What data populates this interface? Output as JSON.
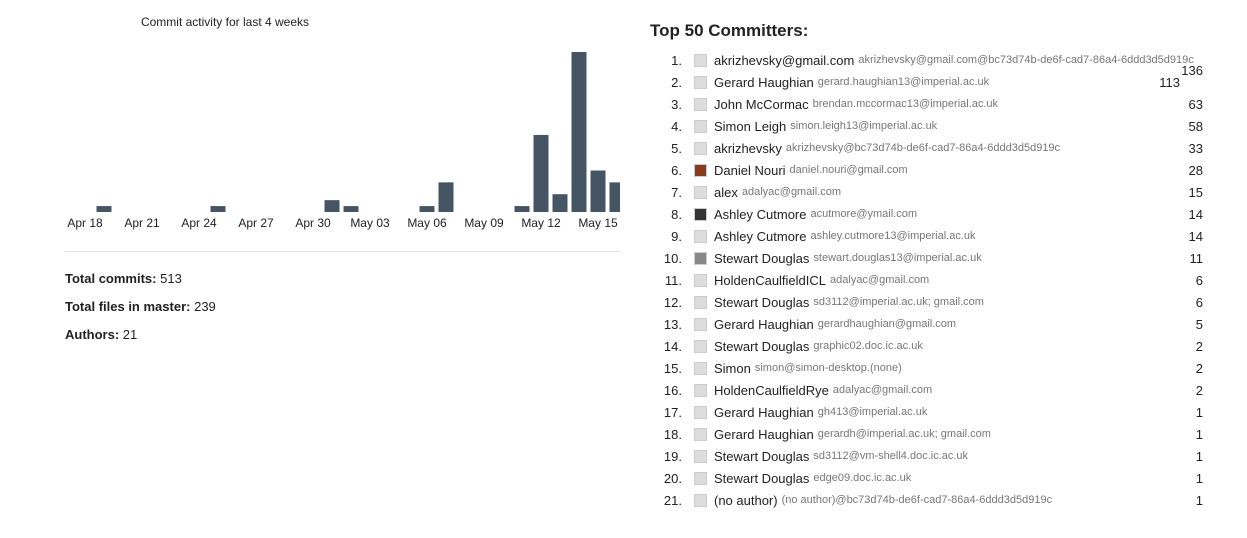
{
  "chart_data": {
    "type": "bar",
    "title": "Commit activity for last 4 weeks",
    "categories": [
      "Apr 18",
      null,
      null,
      "Apr 21",
      null,
      null,
      "Apr 24",
      null,
      null,
      "Apr 27",
      null,
      null,
      "Apr 30",
      null,
      null,
      "May 03",
      null,
      null,
      "May 06",
      null,
      null,
      "May 09",
      null,
      null,
      "May 12",
      null,
      null,
      "May 15",
      null
    ],
    "values": [
      0,
      1,
      0,
      0,
      0,
      0,
      0,
      1,
      0,
      0,
      0,
      0,
      0,
      2,
      1,
      0,
      0,
      0,
      1,
      5,
      0,
      0,
      0,
      1,
      13,
      3,
      27,
      7,
      5
    ],
    "color": "#455564",
    "ylim": [
      0,
      27
    ]
  },
  "stats": [
    {
      "label": "Total commits:",
      "value": "513"
    },
    {
      "label": "Total files in master:",
      "value": "239"
    },
    {
      "label": "Authors:",
      "value": "21"
    }
  ],
  "committers": {
    "title": "Top 50 Committers:",
    "rows": [
      {
        "rank": "1.",
        "name": "akrizhevsky@gmail.com",
        "email": "akrizhevsky@gmail.com@bc73d74b-de6f-cad7-86a4-6ddd3d5d919c",
        "count": "136"
      },
      {
        "rank": "2.",
        "name": "Gerard Haughian",
        "email": "gerard.haughian13@imperial.ac.uk",
        "count": "113"
      },
      {
        "rank": "3.",
        "name": "John McCormac",
        "email": "brendan.mccormac13@imperial.ac.uk",
        "count": "63"
      },
      {
        "rank": "4.",
        "name": "Simon Leigh",
        "email": "simon.leigh13@imperial.ac.uk",
        "count": "58"
      },
      {
        "rank": "5.",
        "name": "akrizhevsky",
        "email": "akrizhevsky@bc73d74b-de6f-cad7-86a4-6ddd3d5d919c",
        "count": "33"
      },
      {
        "rank": "6.",
        "name": "Daniel Nouri",
        "email": "daniel.nouri@gmail.com",
        "count": "28"
      },
      {
        "rank": "7.",
        "name": "alex",
        "email": "adalyac@gmail.com",
        "count": "15"
      },
      {
        "rank": "8.",
        "name": "Ashley Cutmore",
        "email": "acutmore@ymail.com",
        "count": "14"
      },
      {
        "rank": "9.",
        "name": "Ashley Cutmore",
        "email": "ashley.cutmore13@imperial.ac.uk",
        "count": "14"
      },
      {
        "rank": "10.",
        "name": "Stewart Douglas",
        "email": "stewart.douglas13@imperial.ac.uk",
        "count": "11"
      },
      {
        "rank": "11.",
        "name": "HoldenCaulfieldICL",
        "email": "adalyac@gmail.com",
        "count": "6"
      },
      {
        "rank": "12.",
        "name": "Stewart Douglas",
        "email": "sd3112@imperial.ac.uk; gmail.com",
        "count": "6"
      },
      {
        "rank": "13.",
        "name": "Gerard Haughian",
        "email": "gerardhaughian@gmail.com",
        "count": "5"
      },
      {
        "rank": "14.",
        "name": "Stewart Douglas",
        "email": "graphic02.doc.ic.ac.uk",
        "count": "2"
      },
      {
        "rank": "15.",
        "name": "Simon",
        "email": "simon@simon-desktop.(none)",
        "count": "2"
      },
      {
        "rank": "16.",
        "name": "HoldenCaulfieldRye",
        "email": "adalyac@gmail.com",
        "count": "2"
      },
      {
        "rank": "17.",
        "name": "Gerard Haughian",
        "email": "gh413@imperial.ac.uk",
        "count": "1"
      },
      {
        "rank": "18.",
        "name": "Gerard Haughian",
        "email": "gerardh@imperial.ac.uk; gmail.com",
        "count": "1"
      },
      {
        "rank": "19.",
        "name": "Stewart Douglas",
        "email": "sd3112@vm-shell4.doc.ic.ac.uk",
        "count": "1"
      },
      {
        "rank": "20.",
        "name": "Stewart Douglas",
        "email": "edge09.doc.ic.ac.uk",
        "count": "1"
      },
      {
        "rank": "21.",
        "name": "(no author)",
        "email": "(no author)@bc73d74b-de6f-cad7-86a4-6ddd3d5d919c",
        "count": "1"
      }
    ]
  }
}
